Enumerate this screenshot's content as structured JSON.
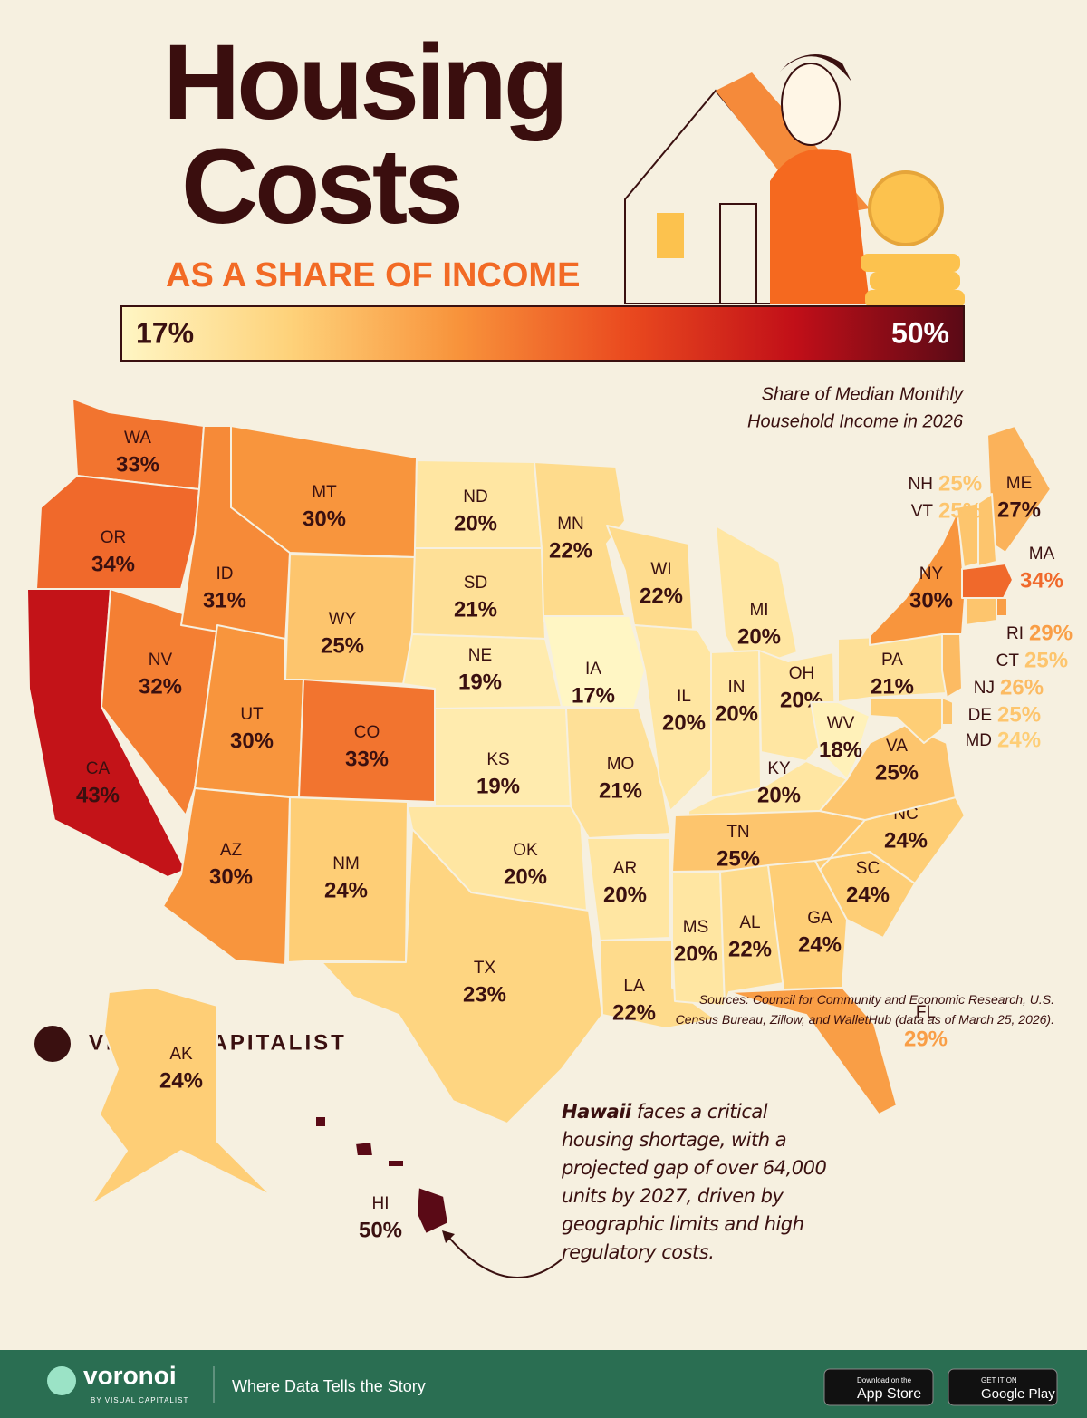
{
  "chart_data": {
    "type": "choropleth",
    "title_lines": [
      "Housing",
      "Costs"
    ],
    "subtitle": "AS A SHARE OF INCOME",
    "note_lines": [
      "Share of Median Monthly",
      "Household Income in 2026"
    ],
    "colorbar": {
      "ticks": [
        {
          "value": 17,
          "label": "17%"
        },
        {
          "value": 50,
          "label": "50%"
        }
      ],
      "colors": [
        "#fff6c4",
        "#fed27a",
        "#f8933b",
        "#ea4a1f",
        "#c10f18",
        "#5a0a16"
      ]
    },
    "categories": [
      "WA",
      "OR",
      "CA",
      "NV",
      "ID",
      "MT",
      "WY",
      "UT",
      "CO",
      "AZ",
      "NM",
      "ND",
      "SD",
      "NE",
      "KS",
      "OK",
      "TX",
      "MN",
      "IA",
      "MO",
      "AR",
      "LA",
      "WI",
      "IL",
      "MI",
      "IN",
      "OH",
      "KY",
      "TN",
      "MS",
      "AL",
      "GA",
      "FL",
      "SC",
      "NC",
      "VA",
      "WV",
      "PA",
      "NY",
      "ME",
      "NH",
      "VT",
      "MA",
      "RI",
      "CT",
      "NJ",
      "DE",
      "MD",
      "AK",
      "HI"
    ],
    "values": [
      33,
      34,
      43,
      32,
      31,
      30,
      25,
      30,
      33,
      30,
      24,
      20,
      21,
      19,
      19,
      20,
      23,
      22,
      17,
      21,
      20,
      22,
      22,
      20,
      20,
      20,
      20,
      20,
      25,
      20,
      22,
      24,
      29,
      24,
      24,
      25,
      18,
      21,
      30,
      27,
      25,
      25,
      34,
      29,
      25,
      26,
      25,
      24,
      24,
      50
    ],
    "value_labels": [
      "33%",
      "34%",
      "43%",
      "32%",
      "31%",
      "30%",
      "25%",
      "30%",
      "33%",
      "30%",
      "24%",
      "20%",
      "21%",
      "19%",
      "19%",
      "20%",
      "23%",
      "22%",
      "17%",
      "21%",
      "20%",
      "22%",
      "22%",
      "20%",
      "20%",
      "20%",
      "20%",
      "20%",
      "25%",
      "20%",
      "22%",
      "24%",
      "29%",
      "24%",
      "24%",
      "25%",
      "18%",
      "21%",
      "30%",
      "27%",
      "25%",
      "25%",
      "34%",
      "29%",
      "25%",
      "26%",
      "25%",
      "24%",
      "24%",
      "50%"
    ],
    "annotation": {
      "bold": "Hawaii",
      "text": "faces a critical housing shortage, with a projected gap of over 64,000 units by 2027, driven by geographic limits and high regulatory costs."
    },
    "source": "Sources: Council for Community and Economic Research, U.S. Census Bureau, Zillow, and WalletHub (data as of March 25, 2026).",
    "brand": "VISUAL CAPITALIST",
    "footer": {
      "logo": "voronoi",
      "logo_sub": "BY VISUAL CAPITALIST",
      "tagline": "Where Data Tells the Story",
      "app_store": [
        "Download on the",
        "App Store"
      ],
      "google_play": [
        "GET IT ON",
        "Google Play"
      ]
    }
  }
}
